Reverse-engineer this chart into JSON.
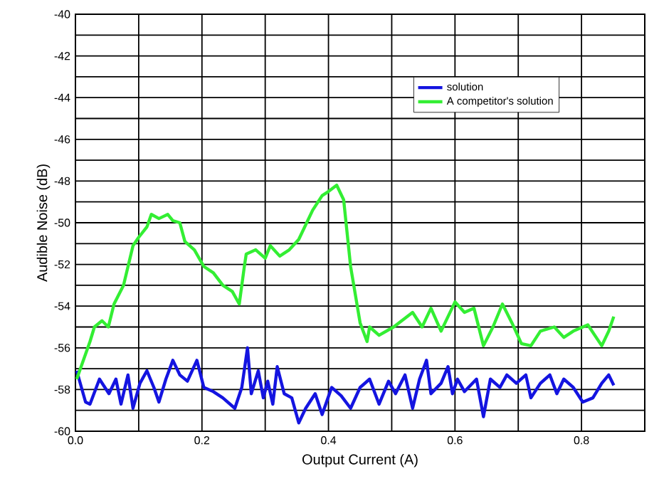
{
  "chart_data": {
    "type": "line",
    "xlabel": "Output Current (A)",
    "ylabel": "Audible Noise (dB)",
    "xlim": [
      0,
      0.9
    ],
    "ylim": [
      -60,
      -40
    ],
    "xticks": [
      {
        "value": 0,
        "label": "0.0"
      },
      {
        "value": 0.1,
        "label": null
      },
      0.2,
      {
        "value": 0.3,
        "label": null
      },
      0.4,
      {
        "value": 0.5,
        "label": null
      },
      0.6,
      {
        "value": 0.7,
        "label": null
      },
      0.8
    ],
    "yticks": [
      -60,
      {
        "value": -59,
        "label": null
      },
      -58,
      {
        "value": -57,
        "label": null
      },
      -56,
      {
        "value": -55,
        "label": null
      },
      -54,
      {
        "value": -53,
        "label": null
      },
      -52,
      {
        "value": -51,
        "label": null
      },
      -50,
      {
        "value": -49,
        "label": null
      },
      -48,
      {
        "value": -47,
        "label": null
      },
      -46,
      {
        "value": -45,
        "label": null
      },
      -44,
      {
        "value": -43,
        "label": null
      },
      -42,
      {
        "value": -41,
        "label": null
      },
      -40
    ],
    "grid": true,
    "legend": "top right",
    "series": [
      {
        "name": "solution",
        "color": "#1414e0",
        "x": [
          0.002,
          0.016,
          0.023,
          0.038,
          0.053,
          0.064,
          0.072,
          0.083,
          0.091,
          0.102,
          0.113,
          0.124,
          0.132,
          0.143,
          0.154,
          0.165,
          0.177,
          0.192,
          0.203,
          0.218,
          0.233,
          0.252,
          0.263,
          0.272,
          0.278,
          0.289,
          0.297,
          0.304,
          0.312,
          0.319,
          0.33,
          0.342,
          0.353,
          0.364,
          0.379,
          0.39,
          0.405,
          0.42,
          0.435,
          0.45,
          0.465,
          0.48,
          0.495,
          0.506,
          0.521,
          0.533,
          0.544,
          0.555,
          0.562,
          0.578,
          0.589,
          0.596,
          0.604,
          0.615,
          0.634,
          0.645,
          0.656,
          0.671,
          0.682,
          0.697,
          0.712,
          0.72,
          0.735,
          0.75,
          0.761,
          0.772,
          0.787,
          0.802,
          0.818,
          0.832,
          0.843,
          0.851
        ],
        "values": [
          -57.1,
          -58.6,
          -58.7,
          -57.5,
          -58.2,
          -57.5,
          -58.7,
          -57.3,
          -58.9,
          -57.7,
          -57.1,
          -57.9,
          -58.6,
          -57.5,
          -56.6,
          -57.3,
          -57.6,
          -56.6,
          -57.9,
          -58.1,
          -58.4,
          -58.9,
          -57.9,
          -56.0,
          -58.2,
          -57.1,
          -58.4,
          -57.6,
          -58.7,
          -56.9,
          -58.2,
          -58.4,
          -59.6,
          -58.9,
          -58.2,
          -59.2,
          -57.9,
          -58.3,
          -58.9,
          -57.9,
          -57.5,
          -58.7,
          -57.6,
          -58.2,
          -57.3,
          -58.9,
          -57.5,
          -56.6,
          -58.2,
          -57.7,
          -56.9,
          -58.2,
          -57.5,
          -58.1,
          -57.5,
          -59.3,
          -57.5,
          -57.9,
          -57.3,
          -57.7,
          -57.3,
          -58.4,
          -57.7,
          -57.3,
          -58.2,
          -57.5,
          -57.9,
          -58.6,
          -58.4,
          -57.7,
          -57.3,
          -57.8
        ]
      },
      {
        "name": "A competitor's solution",
        "color": "#33ee33",
        "x": [
          0.002,
          0.023,
          0.03,
          0.042,
          0.052,
          0.061,
          0.076,
          0.091,
          0.1,
          0.113,
          0.12,
          0.132,
          0.146,
          0.154,
          0.165,
          0.173,
          0.188,
          0.203,
          0.218,
          0.233,
          0.248,
          0.259,
          0.267,
          0.27,
          0.285,
          0.3,
          0.308,
          0.323,
          0.338,
          0.353,
          0.375,
          0.39,
          0.4,
          0.413,
          0.424,
          0.435,
          0.45,
          0.461,
          0.465,
          0.48,
          0.503,
          0.533,
          0.548,
          0.562,
          0.578,
          0.6,
          0.615,
          0.63,
          0.645,
          0.66,
          0.675,
          0.69,
          0.705,
          0.72,
          0.735,
          0.757,
          0.772,
          0.787,
          0.81,
          0.832,
          0.843,
          0.851
        ],
        "values": [
          -57.5,
          -55.7,
          -55.0,
          -54.7,
          -55.0,
          -53.9,
          -53.0,
          -51.1,
          -50.7,
          -50.2,
          -49.6,
          -49.8,
          -49.6,
          -49.9,
          -50.0,
          -50.9,
          -51.3,
          -52.1,
          -52.4,
          -53.0,
          -53.3,
          -53.9,
          -52.1,
          -51.5,
          -51.3,
          -51.7,
          -51.1,
          -51.6,
          -51.3,
          -50.8,
          -49.4,
          -48.7,
          -48.5,
          -48.2,
          -48.9,
          -52.1,
          -54.8,
          -55.7,
          -55.0,
          -55.4,
          -55.0,
          -54.3,
          -55.0,
          -54.1,
          -55.2,
          -53.8,
          -54.3,
          -54.1,
          -55.9,
          -55.0,
          -53.9,
          -54.8,
          -55.8,
          -55.9,
          -55.2,
          -55.0,
          -55.5,
          -55.2,
          -54.9,
          -55.9,
          -55.2,
          -54.5
        ]
      }
    ]
  }
}
